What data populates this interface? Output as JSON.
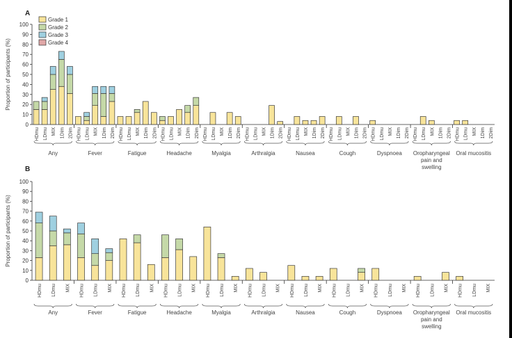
{
  "chart_data": [
    {
      "panel": "A",
      "type": "bar",
      "stacked": true,
      "ylabel": "Proportion of participants (%)",
      "ylim": [
        0,
        100
      ],
      "yticks": [
        0,
        10,
        20,
        30,
        40,
        50,
        60,
        70,
        80,
        90,
        100
      ],
      "legend": [
        "Grade 1",
        "Grade 2",
        "Grade 3",
        "Grade 4"
      ],
      "legend_position": "top-left",
      "bar_labels": [
        "HDmu",
        "LDmu",
        "MIX",
        "1Dim",
        "2Dim"
      ],
      "groups": [
        {
          "name": "Any",
          "lines": [
            "Any"
          ],
          "bars": [
            [
              15,
              8,
              0,
              0
            ],
            [
              15,
              8,
              4,
              0
            ],
            [
              35,
              15,
              8,
              0
            ],
            [
              38,
              27,
              8,
              0
            ],
            [
              31,
              19,
              8,
              0
            ]
          ]
        },
        {
          "name": "Fever",
          "lines": [
            "Fever"
          ],
          "bars": [
            [
              8,
              0,
              0,
              0
            ],
            [
              4,
              4,
              4,
              0
            ],
            [
              19,
              12,
              7,
              0
            ],
            [
              8,
              23,
              7,
              0
            ],
            [
              23,
              8,
              7,
              0
            ]
          ]
        },
        {
          "name": "Fatigue",
          "lines": [
            "Fatigue"
          ],
          "bars": [
            [
              8,
              0,
              0,
              0
            ],
            [
              8,
              0,
              0,
              0
            ],
            [
              12,
              3,
              0,
              0
            ],
            [
              23,
              0,
              0,
              0
            ],
            [
              12,
              0,
              0,
              0
            ]
          ]
        },
        {
          "name": "Headache",
          "lines": [
            "Headache"
          ],
          "bars": [
            [
              4,
              4,
              0,
              0
            ],
            [
              8,
              0,
              0,
              0
            ],
            [
              15,
              0,
              0,
              0
            ],
            [
              12,
              7,
              0,
              0
            ],
            [
              19,
              8,
              0,
              0
            ]
          ]
        },
        {
          "name": "Myalgia",
          "lines": [
            "Myalgia"
          ],
          "bars": [
            [
              0,
              0,
              0,
              0
            ],
            [
              12,
              0,
              0,
              0
            ],
            [
              0,
              0,
              0,
              0
            ],
            [
              12,
              0,
              0,
              0
            ],
            [
              8,
              0,
              0,
              0
            ]
          ]
        },
        {
          "name": "Arthralgia",
          "lines": [
            "Arthralgia"
          ],
          "bars": [
            [
              0,
              0,
              0,
              0
            ],
            [
              0,
              0,
              0,
              0
            ],
            [
              0,
              0,
              0,
              0
            ],
            [
              19,
              0,
              0,
              0
            ],
            [
              3,
              0,
              0,
              0
            ]
          ]
        },
        {
          "name": "Nausea",
          "lines": [
            "Nausea"
          ],
          "bars": [
            [
              0,
              0,
              0,
              0
            ],
            [
              8,
              0,
              0,
              0
            ],
            [
              4,
              0,
              0,
              0
            ],
            [
              4,
              0,
              0,
              0
            ],
            [
              8,
              0,
              0,
              0
            ]
          ]
        },
        {
          "name": "Cough",
          "lines": [
            "Cough"
          ],
          "bars": [
            [
              0,
              0,
              0,
              0
            ],
            [
              8,
              0,
              0,
              0
            ],
            [
              0,
              0,
              0,
              0
            ],
            [
              8,
              0,
              0,
              0
            ],
            [
              0,
              0,
              0,
              0
            ]
          ]
        },
        {
          "name": "Dyspnoea",
          "lines": [
            "Dyspnoea"
          ],
          "bars": [
            [
              4,
              0,
              0,
              0
            ],
            [
              0,
              0,
              0,
              0
            ],
            [
              0,
              0,
              0,
              0
            ],
            [
              0,
              0,
              0,
              0
            ],
            [
              0,
              0,
              0,
              0
            ]
          ]
        },
        {
          "name": "Oropharyngeal pain and swelling",
          "lines": [
            "Oropharyngeal",
            "pain and",
            "swelling"
          ],
          "bars": [
            [
              0,
              0,
              0,
              0
            ],
            [
              8,
              0,
              0,
              0
            ],
            [
              4,
              0,
              0,
              0
            ],
            [
              0,
              0,
              0,
              0
            ],
            [
              0,
              0,
              0,
              0
            ]
          ]
        },
        {
          "name": "Oral mucositis",
          "lines": [
            "Oral mucositis"
          ],
          "bars": [
            [
              4,
              0,
              0,
              0
            ],
            [
              4,
              0,
              0,
              0
            ],
            [
              0,
              0,
              0,
              0
            ],
            [
              0,
              0,
              0,
              0
            ],
            [
              0,
              0,
              0,
              0
            ]
          ]
        }
      ]
    },
    {
      "panel": "B",
      "type": "bar",
      "stacked": true,
      "ylabel": "Proportion of participants (%)",
      "ylim": [
        0,
        100
      ],
      "yticks": [
        0,
        10,
        20,
        30,
        40,
        50,
        60,
        70,
        80,
        90,
        100
      ],
      "bar_labels": [
        "HDmu",
        "LDmu",
        "MIX"
      ],
      "groups": [
        {
          "name": "Any",
          "lines": [
            "Any"
          ],
          "bars": [
            [
              23,
              35,
              11,
              0
            ],
            [
              35,
              15,
              15,
              0
            ],
            [
              36,
              12,
              4,
              0
            ]
          ]
        },
        {
          "name": "Fever",
          "lines": [
            "Fever"
          ],
          "bars": [
            [
              23,
              24,
              11,
              0
            ],
            [
              15,
              12,
              15,
              0
            ],
            [
              20,
              8,
              4,
              0
            ]
          ]
        },
        {
          "name": "Fatigue",
          "lines": [
            "Fatigue"
          ],
          "bars": [
            [
              42,
              0,
              0,
              0
            ],
            [
              38,
              8,
              0,
              0
            ],
            [
              16,
              0,
              0,
              0
            ]
          ]
        },
        {
          "name": "Headache",
          "lines": [
            "Headache"
          ],
          "bars": [
            [
              23,
              23,
              0,
              0
            ],
            [
              31,
              11,
              0,
              0
            ],
            [
              24,
              0,
              0,
              0
            ]
          ]
        },
        {
          "name": "Myalgia",
          "lines": [
            "Myalgia"
          ],
          "bars": [
            [
              54,
              0,
              0,
              0
            ],
            [
              23,
              4,
              0,
              0
            ],
            [
              4,
              0,
              0,
              0
            ]
          ]
        },
        {
          "name": "Arthralgia",
          "lines": [
            "Arthralgia"
          ],
          "bars": [
            [
              12,
              0,
              0,
              0
            ],
            [
              8,
              0,
              0,
              0
            ],
            [
              0,
              0,
              0,
              0
            ]
          ]
        },
        {
          "name": "Nausea",
          "lines": [
            "Nausea"
          ],
          "bars": [
            [
              15,
              0,
              0,
              0
            ],
            [
              4,
              0,
              0,
              0
            ],
            [
              4,
              0,
              0,
              0
            ]
          ]
        },
        {
          "name": "Cough",
          "lines": [
            "Cough"
          ],
          "bars": [
            [
              12,
              0,
              0,
              0
            ],
            [
              0,
              0,
              0,
              0
            ],
            [
              8,
              4,
              0,
              0
            ]
          ]
        },
        {
          "name": "Dyspnoea",
          "lines": [
            "Dyspnoea"
          ],
          "bars": [
            [
              12,
              0,
              0,
              0
            ],
            [
              0,
              0,
              0,
              0
            ],
            [
              0,
              0,
              0,
              0
            ]
          ]
        },
        {
          "name": "Oropharyngeal pain and swelling",
          "lines": [
            "Oropharyngeal",
            "pain and",
            "swelling"
          ],
          "bars": [
            [
              4,
              0,
              0,
              0
            ],
            [
              0,
              0,
              0,
              0
            ],
            [
              8,
              0,
              0,
              0
            ]
          ]
        },
        {
          "name": "Oral mucositis",
          "lines": [
            "Oral mucositis"
          ],
          "bars": [
            [
              4,
              0,
              0,
              0
            ],
            [
              0,
              0,
              0,
              0
            ],
            [
              0,
              0,
              0,
              0
            ]
          ]
        }
      ]
    }
  ],
  "grade_colors": [
    "#f8e49a",
    "#c5d9a8",
    "#9fd0e0",
    "#e0a8a8"
  ]
}
